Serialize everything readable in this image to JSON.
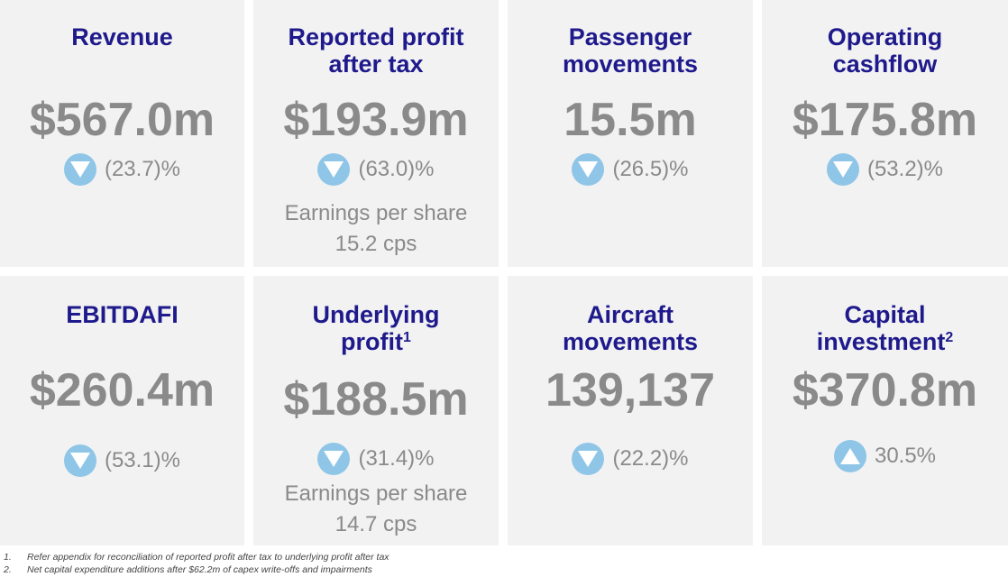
{
  "tiles": [
    {
      "title_lines": [
        "Revenue",
        ""
      ],
      "sup": "",
      "value": "$567.0m",
      "direction": "down",
      "change": "(23.7)%",
      "eps_label": "",
      "eps_value": ""
    },
    {
      "title_lines": [
        "Reported profit",
        "after tax"
      ],
      "sup": "",
      "value": "$193.9m",
      "direction": "down",
      "change": "(63.0)%",
      "eps_label": "Earnings per share",
      "eps_value": "15.2 cps"
    },
    {
      "title_lines": [
        "Passenger",
        "movements"
      ],
      "sup": "",
      "value": "15.5m",
      "direction": "down",
      "change": "(26.5)%",
      "eps_label": "",
      "eps_value": ""
    },
    {
      "title_lines": [
        "Operating",
        "cashflow"
      ],
      "sup": "",
      "value": "$175.8m",
      "direction": "down",
      "change": "(53.2)%",
      "eps_label": "",
      "eps_value": ""
    },
    {
      "title_lines": [
        "EBITDAFI",
        ""
      ],
      "sup": "",
      "value": "$260.4m",
      "direction": "down",
      "change": "(53.1)%",
      "eps_label": "",
      "eps_value": ""
    },
    {
      "title_lines": [
        "Underlying",
        "profit"
      ],
      "sup": "1",
      "value": "$188.5m",
      "direction": "down",
      "change": "(31.4)%",
      "eps_label": "Earnings per share",
      "eps_value": "14.7 cps"
    },
    {
      "title_lines": [
        "Aircraft",
        "movements"
      ],
      "sup": "",
      "value": "139,137",
      "direction": "down",
      "change": "(22.2)%",
      "eps_label": "",
      "eps_value": ""
    },
    {
      "title_lines": [
        "Capital",
        "investment"
      ],
      "sup": "2",
      "value": "$370.8m",
      "direction": "up",
      "change": "30.5%",
      "eps_label": "",
      "eps_value": ""
    }
  ],
  "footnotes": [
    {
      "num": "1.",
      "text": "Refer appendix for reconciliation of reported profit after tax to underlying profit after tax"
    },
    {
      "num": "2.",
      "text": "Net capital expenditure additions after $62.2m of capex write-offs and impairments"
    }
  ],
  "colors": {
    "title": "#1f1a8c",
    "value": "#8a8a8a",
    "arrow": "#8fc6e8",
    "tile_bg": "#f2f2f2"
  },
  "icons": {
    "down": "triangle-down-icon",
    "up": "triangle-up-icon"
  }
}
